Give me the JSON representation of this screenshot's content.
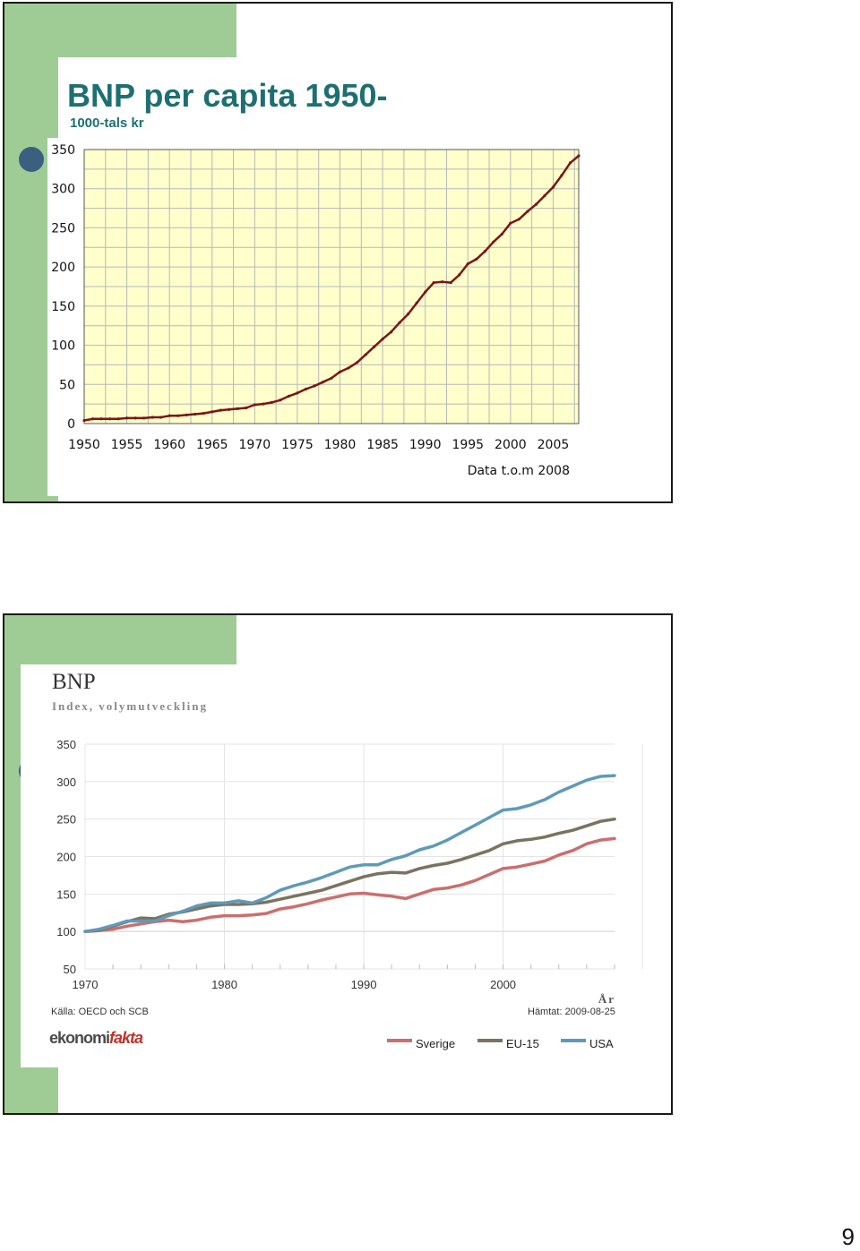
{
  "page_number": "9",
  "colors": {
    "green": "#9fcc95",
    "teal_title": "#1d6f72",
    "chart1_plot_bg": "#ffffcc",
    "chart1_line": "#7b1616",
    "sverige": "#cc6e6e",
    "eu15": "#7a7360",
    "usa": "#5f9ab8"
  },
  "slide1": {
    "title": "BNP per capita 1950-",
    "subtitle": "1000-tals kr",
    "footnote": "Data t.o.m 2008"
  },
  "slide2": {
    "title": "BNP",
    "subtitle": "Index, volymutveckling",
    "source": "Källa: OECD och SCB",
    "retrieved": "Hämtat: 2009-08-25",
    "logo_part1": "ekonomi",
    "logo_part2": "fakta"
  },
  "chart_data": [
    {
      "type": "line",
      "title": "BNP per capita 1950-",
      "ylabel": "1000-tals kr",
      "xlim": [
        1950,
        2008
      ],
      "ylim": [
        0,
        350
      ],
      "xticks": [
        1950,
        1955,
        1960,
        1965,
        1970,
        1975,
        1980,
        1985,
        1990,
        1995,
        2000,
        2005
      ],
      "yticks": [
        0,
        50,
        100,
        150,
        200,
        250,
        300,
        350
      ],
      "grid": true,
      "x": [
        1950,
        1951,
        1952,
        1953,
        1954,
        1955,
        1956,
        1957,
        1958,
        1959,
        1960,
        1961,
        1962,
        1963,
        1964,
        1965,
        1966,
        1967,
        1968,
        1969,
        1970,
        1971,
        1972,
        1973,
        1974,
        1975,
        1976,
        1977,
        1978,
        1979,
        1980,
        1981,
        1982,
        1983,
        1984,
        1985,
        1986,
        1987,
        1988,
        1989,
        1990,
        1991,
        1992,
        1993,
        1994,
        1995,
        1996,
        1997,
        1998,
        1999,
        2000,
        2001,
        2002,
        2003,
        2004,
        2005,
        2006,
        2007,
        2008
      ],
      "series": [
        {
          "values": [
            4,
            6,
            6,
            6,
            6,
            7,
            7,
            7,
            8,
            8,
            10,
            10,
            11,
            12,
            13,
            15,
            17,
            18,
            19,
            20,
            24,
            25,
            27,
            30,
            35,
            39,
            44,
            48,
            53,
            58,
            66,
            71,
            78,
            88,
            98,
            108,
            117,
            129,
            140,
            154,
            168,
            180,
            181,
            180,
            190,
            204,
            210,
            220,
            232,
            242,
            256,
            261,
            271,
            280,
            291,
            302,
            317,
            333,
            342
          ]
        }
      ],
      "footnote": "Data t.o.m 2008"
    },
    {
      "type": "line",
      "title": "BNP",
      "subtitle": "Index, volymutveckling",
      "xlabel": "År",
      "xlim": [
        1970,
        2008
      ],
      "ylim": [
        50,
        350
      ],
      "xticks": [
        1970,
        1980,
        1990,
        2000
      ],
      "yticks": [
        50,
        100,
        150,
        200,
        250,
        300,
        350
      ],
      "grid": true,
      "legend_position": "bottom-right",
      "x": [
        1970,
        1971,
        1972,
        1973,
        1974,
        1975,
        1976,
        1977,
        1978,
        1979,
        1980,
        1981,
        1982,
        1983,
        1984,
        1985,
        1986,
        1987,
        1988,
        1989,
        1990,
        1991,
        1992,
        1993,
        1994,
        1995,
        1996,
        1997,
        1998,
        1999,
        2000,
        2001,
        2002,
        2003,
        2004,
        2005,
        2006,
        2007,
        2008
      ],
      "series": [
        {
          "name": "Sverige",
          "values": [
            100,
            101,
            103,
            107,
            110,
            113,
            115,
            113,
            115,
            119,
            121,
            121,
            122,
            124,
            130,
            133,
            137,
            142,
            146,
            150,
            151,
            149,
            147,
            144,
            150,
            156,
            158,
            162,
            168,
            176,
            184,
            186,
            190,
            194,
            202,
            208,
            217,
            222,
            224
          ]
        },
        {
          "name": "EU-15",
          "values": [
            100,
            102,
            107,
            113,
            118,
            117,
            123,
            126,
            130,
            134,
            136,
            136,
            137,
            139,
            143,
            147,
            151,
            155,
            161,
            167,
            173,
            177,
            179,
            178,
            184,
            188,
            191,
            196,
            202,
            208,
            217,
            221,
            223,
            226,
            231,
            235,
            241,
            247,
            250
          ]
        },
        {
          "name": "USA",
          "values": [
            100,
            103,
            108,
            114,
            114,
            114,
            121,
            127,
            134,
            138,
            138,
            141,
            138,
            145,
            155,
            161,
            166,
            172,
            179,
            186,
            189,
            189,
            196,
            201,
            209,
            214,
            222,
            232,
            242,
            252,
            262,
            264,
            269,
            276,
            286,
            294,
            302,
            307,
            308
          ]
        }
      ]
    }
  ]
}
